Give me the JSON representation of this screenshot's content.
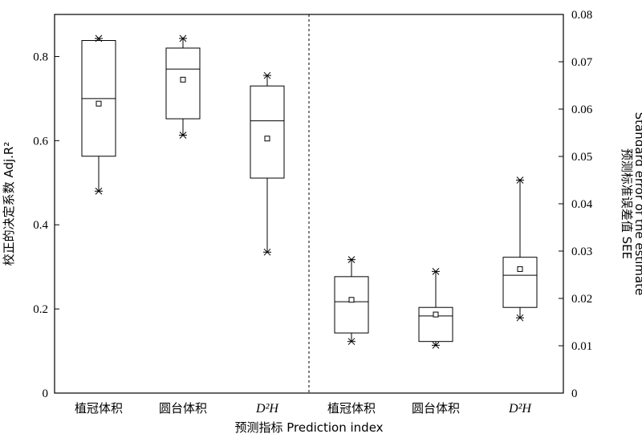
{
  "chart_data": {
    "type": "box",
    "xlabel": "预测指标 Prediction index",
    "ylabel_left": "校正的决定系数 Adj.R²",
    "ylabel_right_line1": "预测标准误差值 SEE",
    "ylabel_right_line2": "Standard error of the estimate",
    "ylim_left": [
      0,
      0.9
    ],
    "ylim_right": [
      0,
      0.08
    ],
    "left_ticks": [
      "0",
      "0.2",
      "0.4",
      "0.6",
      "0.8"
    ],
    "right_ticks": [
      "0",
      "0.01",
      "0.02",
      "0.03",
      "0.04",
      "0.05",
      "0.06",
      "0.07",
      "0.08"
    ],
    "groups": [
      {
        "axis": "left",
        "boxes": [
          {
            "label": "植冠体积",
            "min": 0.48,
            "q1": 0.563,
            "median": 0.7,
            "q3": 0.838,
            "max": 0.843,
            "mean": 0.688
          },
          {
            "label": "圆台体积",
            "min": 0.613,
            "q1": 0.652,
            "median": 0.77,
            "q3": 0.82,
            "max": 0.843,
            "mean": 0.745
          },
          {
            "label": "D²H",
            "min": 0.335,
            "q1": 0.511,
            "median": 0.647,
            "q3": 0.73,
            "max": 0.755,
            "mean": 0.605
          }
        ]
      },
      {
        "axis": "right",
        "boxes": [
          {
            "label": "植冠体积",
            "min": 0.0109,
            "q1": 0.0127,
            "median": 0.0193,
            "q3": 0.0246,
            "max": 0.0282,
            "mean": 0.0197
          },
          {
            "label": "圆台体积",
            "min": 0.0101,
            "q1": 0.0109,
            "median": 0.0163,
            "q3": 0.0181,
            "max": 0.0257,
            "mean": 0.0166
          },
          {
            "label": "D²H",
            "min": 0.0159,
            "q1": 0.0181,
            "median": 0.0249,
            "q3": 0.0287,
            "max": 0.045,
            "mean": 0.0262
          }
        ]
      }
    ]
  }
}
